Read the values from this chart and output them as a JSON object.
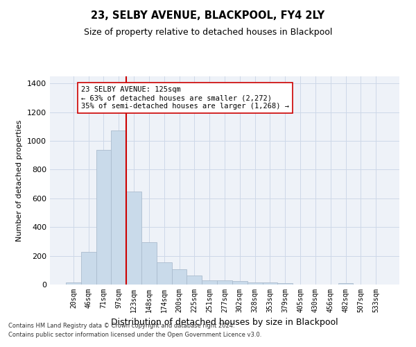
{
  "title": "23, SELBY AVENUE, BLACKPOOL, FY4 2LY",
  "subtitle": "Size of property relative to detached houses in Blackpool",
  "xlabel": "Distribution of detached houses by size in Blackpool",
  "ylabel": "Number of detached properties",
  "bar_color": "#c9daea",
  "bar_edge_color": "#aabcce",
  "grid_color": "#cdd8e8",
  "background_color": "#eef2f8",
  "categories": [
    "20sqm",
    "46sqm",
    "71sqm",
    "97sqm",
    "123sqm",
    "148sqm",
    "174sqm",
    "200sqm",
    "225sqm",
    "251sqm",
    "277sqm",
    "302sqm",
    "328sqm",
    "353sqm",
    "379sqm",
    "405sqm",
    "430sqm",
    "456sqm",
    "482sqm",
    "507sqm",
    "533sqm"
  ],
  "values": [
    15,
    225,
    940,
    1075,
    650,
    295,
    155,
    105,
    65,
    30,
    28,
    22,
    15,
    15,
    10,
    0,
    0,
    0,
    10,
    0,
    0
  ],
  "vline_color": "#cc0000",
  "vline_index": 3.5,
  "annotation_text": "23 SELBY AVENUE: 125sqm\n← 63% of detached houses are smaller (2,272)\n35% of semi-detached houses are larger (1,268) →",
  "annotation_box_color": "white",
  "annotation_box_edge": "#cc0000",
  "ylim": [
    0,
    1450
  ],
  "yticks": [
    0,
    200,
    400,
    600,
    800,
    1000,
    1200,
    1400
  ],
  "footer_line1": "Contains HM Land Registry data © Crown copyright and database right 2024.",
  "footer_line2": "Contains public sector information licensed under the Open Government Licence v3.0."
}
